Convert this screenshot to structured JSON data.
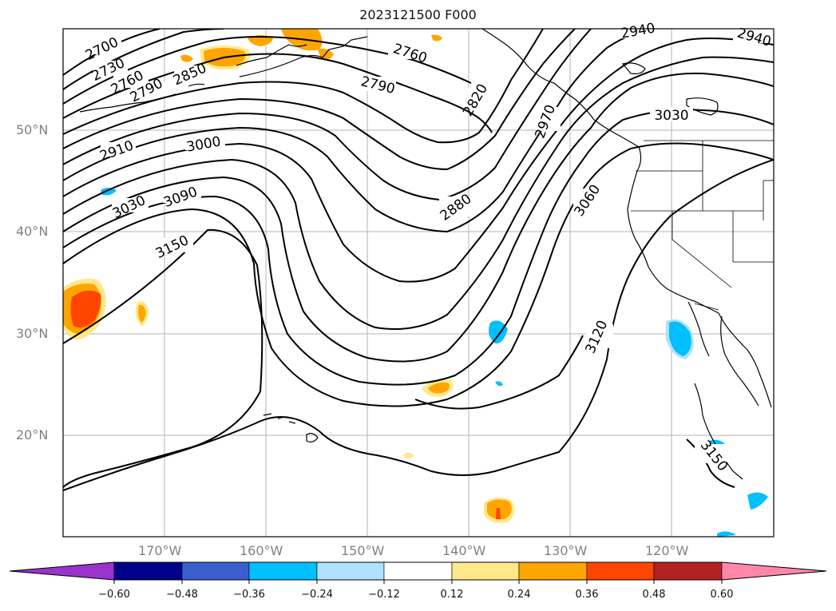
{
  "title": "2023121500 F000",
  "lat_labels": [
    "50°N",
    "40°N",
    "30°N",
    "20°N"
  ],
  "lon_labels": [
    "170°W",
    "160°W",
    "150°W",
    "140°W",
    "130°W",
    "120°W"
  ],
  "contour_labels": [
    "2700",
    "2730",
    "2760",
    "2790",
    "2850",
    "2910",
    "3000",
    "3030",
    "3090",
    "3150",
    "2760",
    "2790",
    "2820",
    "2970",
    "2880",
    "3060",
    "3030",
    "2940",
    "2940",
    "3120",
    "3150"
  ],
  "colorbar": {
    "tick_labels": [
      "−0.60",
      "−0.48",
      "−0.36",
      "−0.24",
      "−0.12",
      "0.12",
      "0.24",
      "0.36",
      "0.48",
      "0.60"
    ],
    "colors": [
      "#9933cc",
      "#00008b",
      "#3a5fcd",
      "#00bfff",
      "#b0e2ff",
      "#ffffff",
      "#ffe88a",
      "#ffa500",
      "#ff4500",
      "#b22222",
      "#ff88aa"
    ]
  }
}
